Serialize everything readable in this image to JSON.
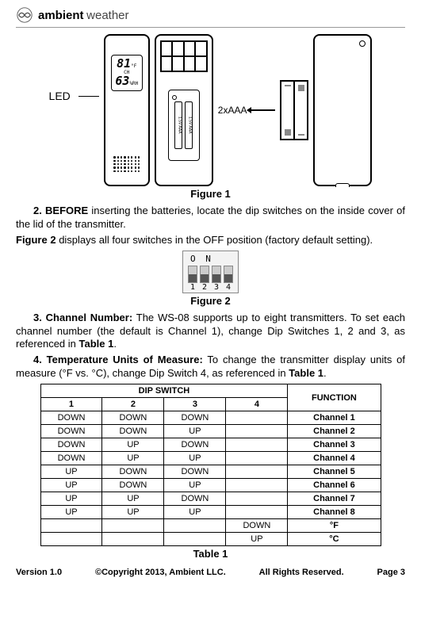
{
  "brand": {
    "bold": "ambient",
    "light": "weather"
  },
  "led_label": "LED",
  "display": {
    "temp": "81",
    "temp_unit": "°F",
    "hum": "63",
    "hum_unit": "%RH",
    "ch": "CH"
  },
  "batt_label": "2xAAA",
  "fig1_caption": "Figure 1",
  "para1_lead": "2. BEFORE",
  "para1_rest": " inserting the batteries, locate the dip switches on the inside cover of the lid of the transmitter.",
  "para2_lead": "Figure 2",
  "para2_rest": " displays all four switches in the OFF position (factory default setting).",
  "fig2": {
    "on": "O N",
    "nums": [
      "1",
      "2",
      "3",
      "4"
    ]
  },
  "fig2_caption": "Figure 2",
  "para3_lead": "3. Channel Number:",
  "para3_rest": " The WS-08 supports up to eight transmitters. To set each channel number (the default is Channel 1), change Dip Switches 1, 2 and 3, as referenced in ",
  "para3_tail": "Table 1",
  "para4_lead": "4. Temperature Units of Measure:",
  "para4_rest": " To change the transmitter display units of measure (°F vs. °C), change Dip Switch 4, as referenced in ",
  "para4_tail": "Table 1",
  "table": {
    "title": "DIP SWITCH",
    "func": "FUNCTION",
    "cols": [
      "1",
      "2",
      "3",
      "4"
    ],
    "rows": [
      [
        "DOWN",
        "DOWN",
        "DOWN",
        "",
        "Channel 1"
      ],
      [
        "DOWN",
        "DOWN",
        "UP",
        "",
        "Channel 2"
      ],
      [
        "DOWN",
        "UP",
        "DOWN",
        "",
        "Channel 3"
      ],
      [
        "DOWN",
        "UP",
        "UP",
        "",
        "Channel 4"
      ],
      [
        "UP",
        "DOWN",
        "DOWN",
        "",
        "Channel 5"
      ],
      [
        "UP",
        "DOWN",
        "UP",
        "",
        "Channel 6"
      ],
      [
        "UP",
        "UP",
        "DOWN",
        "",
        "Channel 7"
      ],
      [
        "UP",
        "UP",
        "UP",
        "",
        "Channel 8"
      ],
      [
        "",
        "",
        "",
        "DOWN",
        "°F"
      ],
      [
        "",
        "",
        "",
        "UP",
        "°C"
      ]
    ],
    "caption": "Table 1"
  },
  "footer": {
    "version": "Version 1.0",
    "copyright": "©Copyright 2013, Ambient  LLC.",
    "rights": "All Rights Reserved.",
    "page": "Page 3"
  }
}
